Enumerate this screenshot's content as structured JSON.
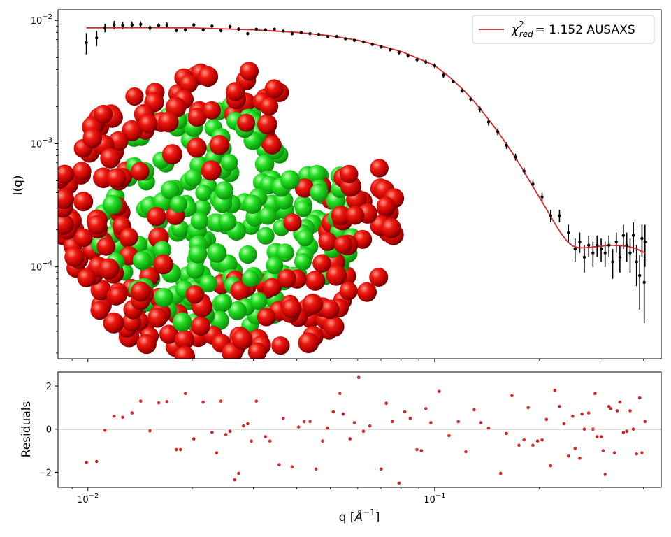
{
  "colors": {
    "data": "#000000",
    "fit": "#d62728",
    "residual": "#d62728",
    "zero_line": "#808080",
    "atom_shell": "#e00000",
    "atom_core": "#1ed81e"
  },
  "chart_data": [
    {
      "type": "scatter",
      "panel": "main",
      "ylabel": "I(q)",
      "xscale": "log",
      "yscale": "log",
      "xlim": [
        0.0082,
        0.45
      ],
      "ylim": [
        1.8e-05,
        0.0122
      ],
      "legend": {
        "position": "top-right",
        "text": "= 1.152 AUSAXS",
        "symbol_base": "χ",
        "symbol_sup": "2",
        "symbol_sub": "red"
      },
      "y_ticks": [
        {
          "value": 0.0001,
          "base": "10",
          "exp": "−4"
        },
        {
          "value": 0.001,
          "base": "10",
          "exp": "−3"
        },
        {
          "value": 0.01,
          "base": "10",
          "exp": "−2"
        }
      ],
      "series": [
        {
          "kind": "points-with-error",
          "points": [
            [
              0.0099,
              0.0066,
              0.0013
            ],
            [
              0.0106,
              0.0072,
              0.001
            ],
            [
              0.0112,
              0.0087,
              0.0007
            ],
            [
              0.0119,
              0.0092,
              0.0007
            ],
            [
              0.0126,
              0.0091,
              0.0006
            ],
            [
              0.0134,
              0.0092,
              0.0006
            ],
            [
              0.0142,
              0.0093,
              0.0005
            ],
            [
              0.0151,
              0.0087,
              0.0004
            ],
            [
              0.016,
              0.0091,
              0.0004
            ],
            [
              0.0169,
              0.0092,
              0.0004
            ],
            [
              0.018,
              0.0083,
              0.0003
            ],
            [
              0.0191,
              0.0084,
              0.0003
            ],
            [
              0.0202,
              0.0092,
              0.0003
            ],
            [
              0.0215,
              0.0084,
              0.0003
            ],
            [
              0.0228,
              0.009,
              0.0003
            ],
            [
              0.0242,
              0.0083,
              0.0003
            ],
            [
              0.0257,
              0.0089,
              0.0003
            ],
            [
              0.0272,
              0.0085,
              0.0003
            ],
            [
              0.0289,
              0.0078,
              0.0002
            ],
            [
              0.0306,
              0.0085,
              0.0002
            ],
            [
              0.0325,
              0.0084,
              0.0002
            ],
            [
              0.0345,
              0.0085,
              0.0002
            ],
            [
              0.0366,
              0.0082,
              0.0002
            ],
            [
              0.0388,
              0.0078,
              0.0002
            ],
            [
              0.0412,
              0.008,
              0.0002
            ],
            [
              0.0437,
              0.0078,
              0.0002
            ],
            [
              0.0463,
              0.0077,
              0.0002
            ],
            [
              0.0492,
              0.0074,
              0.0002
            ],
            [
              0.0522,
              0.0074,
              0.0002
            ],
            [
              0.0553,
              0.0071,
              0.0002
            ],
            [
              0.0587,
              0.0069,
              0.0002
            ],
            [
              0.0623,
              0.0067,
              0.0002
            ],
            [
              0.0661,
              0.0064,
              0.0002
            ],
            [
              0.0701,
              0.0061,
              0.0002
            ],
            [
              0.0744,
              0.0058,
              0.0002
            ],
            [
              0.0789,
              0.0055,
              0.0002
            ],
            [
              0.0838,
              0.0052,
              0.0002
            ],
            [
              0.0889,
              0.0048,
              0.0002
            ],
            [
              0.0943,
              0.0046,
              0.0002
            ],
            [
              0.1,
              0.0043,
              0.0002
            ],
            [
              0.106,
              0.0036,
              0.0002
            ],
            [
              0.113,
              0.0032,
              0.0001
            ],
            [
              0.12,
              0.0027,
              0.0001
            ],
            [
              0.127,
              0.0023,
              0.0001
            ],
            [
              0.135,
              0.0019,
              0.0001
            ],
            [
              0.143,
              0.0015,
              0.0001
            ],
            [
              0.152,
              0.00125,
              8e-05
            ],
            [
              0.161,
              0.00097,
              6e-05
            ],
            [
              0.171,
              0.00078,
              5e-05
            ],
            [
              0.181,
              0.0006,
              4e-05
            ],
            [
              0.192,
              0.00047,
              3e-05
            ],
            [
              0.204,
              0.00037,
              3e-05
            ],
            [
              0.216,
              0.00026,
              3e-05
            ],
            [
              0.229,
              0.00026,
              3e-05
            ],
            [
              0.243,
              0.00019,
              3e-05
            ],
            [
              0.254,
              0.00014,
              3e-05
            ],
            [
              0.262,
              0.00016,
              3e-05
            ],
            [
              0.27,
              0.00012,
              3e-05
            ],
            [
              0.278,
              0.00015,
              3e-05
            ],
            [
              0.286,
              0.00013,
              3e-05
            ],
            [
              0.294,
              0.00015,
              3e-05
            ],
            [
              0.302,
              0.00014,
              3e-05
            ],
            [
              0.31,
              0.00013,
              3e-05
            ],
            [
              0.318,
              0.00015,
              3e-05
            ],
            [
              0.326,
              0.00011,
              3e-05
            ],
            [
              0.334,
              0.00016,
              3e-05
            ],
            [
              0.342,
              0.00012,
              3e-05
            ],
            [
              0.35,
              0.00018,
              4e-05
            ],
            [
              0.358,
              0.00015,
              4e-05
            ],
            [
              0.366,
              0.00013,
              4e-05
            ],
            [
              0.374,
              0.00018,
              5e-05
            ],
            [
              0.382,
              0.00011,
              4e-05
            ],
            [
              0.39,
              8.5e-05,
              4e-05
            ],
            [
              0.396,
              0.00017,
              5e-05
            ],
            [
              0.402,
              7.5e-05,
              4e-05
            ],
            [
              0.404,
              0.00016,
              6e-05
            ]
          ]
        },
        {
          "kind": "fit-line",
          "points": [
            [
              0.0099,
              0.0087
            ],
            [
              0.015,
              0.00873
            ],
            [
              0.02,
              0.0087
            ],
            [
              0.03,
              0.0084
            ],
            [
              0.04,
              0.008
            ],
            [
              0.05,
              0.0075
            ],
            [
              0.06,
              0.0069
            ],
            [
              0.07,
              0.0062
            ],
            [
              0.08,
              0.0056
            ],
            [
              0.09,
              0.0049
            ],
            [
              0.1,
              0.0043
            ],
            [
              0.11,
              0.0035
            ],
            [
              0.12,
              0.0028
            ],
            [
              0.13,
              0.0022
            ],
            [
              0.14,
              0.0017
            ],
            [
              0.15,
              0.00132
            ],
            [
              0.16,
              0.00102
            ],
            [
              0.17,
              0.00079
            ],
            [
              0.18,
              0.00061
            ],
            [
              0.19,
              0.00047
            ],
            [
              0.2,
              0.00037
            ],
            [
              0.21,
              0.000295
            ],
            [
              0.22,
              0.000235
            ],
            [
              0.23,
              0.000192
            ],
            [
              0.24,
              0.000163
            ],
            [
              0.25,
              0.000148
            ],
            [
              0.26,
              0.000143
            ],
            [
              0.27,
              0.000143
            ],
            [
              0.28,
              0.000144
            ],
            [
              0.3,
              0.000147
            ],
            [
              0.32,
              0.00015
            ],
            [
              0.34,
              0.000149
            ],
            [
              0.36,
              0.000147
            ],
            [
              0.38,
              0.000141
            ],
            [
              0.4,
              0.000132
            ],
            [
              0.405,
              0.00013
            ]
          ]
        }
      ]
    },
    {
      "type": "scatter",
      "panel": "residuals",
      "xlabel_base": "q [",
      "xlabel_unit": "Å",
      "xlabel_exp": "−1",
      "xlabel_end": "]",
      "ylabel": "Residuals",
      "xscale": "log",
      "xlim": [
        0.0082,
        0.45
      ],
      "ylim": [
        -2.7,
        2.65
      ],
      "x_ticks": [
        {
          "value": 0.01,
          "base": "10",
          "exp": "−2"
        },
        {
          "value": 0.1,
          "base": "10",
          "exp": "−1"
        }
      ],
      "y_ticks": [
        {
          "value": -2,
          "label": "−2"
        },
        {
          "value": 0,
          "label": "0"
        },
        {
          "value": 2,
          "label": "2"
        }
      ],
      "points": [
        [
          0.0099,
          -1.55
        ],
        [
          0.0106,
          -1.5
        ],
        [
          0.0112,
          -0.05
        ],
        [
          0.0119,
          0.6
        ],
        [
          0.0126,
          0.55
        ],
        [
          0.0134,
          0.75
        ],
        [
          0.0142,
          1.3
        ],
        [
          0.0151,
          -0.08
        ],
        [
          0.016,
          1.22
        ],
        [
          0.0169,
          1.28
        ],
        [
          0.018,
          -0.95
        ],
        [
          0.0185,
          -0.95
        ],
        [
          0.0191,
          1.65
        ],
        [
          0.0202,
          -0.45
        ],
        [
          0.0215,
          1.25
        ],
        [
          0.0228,
          -0.15
        ],
        [
          0.0235,
          -1.1
        ],
        [
          0.0242,
          1.3
        ],
        [
          0.025,
          -0.25
        ],
        [
          0.0257,
          -0.1
        ],
        [
          0.0265,
          -2.35
        ],
        [
          0.0272,
          -2.05
        ],
        [
          0.0281,
          0.15
        ],
        [
          0.0289,
          0.25
        ],
        [
          0.0296,
          -0.55
        ],
        [
          0.0306,
          1.3
        ],
        [
          0.0325,
          -0.35
        ],
        [
          0.0335,
          -0.55
        ],
        [
          0.0356,
          -1.65
        ],
        [
          0.0366,
          0.5
        ],
        [
          0.0388,
          -1.75
        ],
        [
          0.0405,
          0.1
        ],
        [
          0.042,
          0.35
        ],
        [
          0.0437,
          0.35
        ],
        [
          0.0455,
          -1.85
        ],
        [
          0.0475,
          -0.55
        ],
        [
          0.049,
          0.05
        ],
        [
          0.051,
          0.8
        ],
        [
          0.0533,
          1.65
        ],
        [
          0.0545,
          0.7
        ],
        [
          0.057,
          -0.45
        ],
        [
          0.0587,
          0.3
        ],
        [
          0.0604,
          2.4
        ],
        [
          0.0623,
          -0.1
        ],
        [
          0.065,
          0.15
        ],
        [
          0.0701,
          -1.85
        ],
        [
          0.0725,
          1.2
        ],
        [
          0.0755,
          0.35
        ],
        [
          0.0789,
          -2.5
        ],
        [
          0.082,
          0.8
        ],
        [
          0.085,
          0.5
        ],
        [
          0.0889,
          -0.95
        ],
        [
          0.0915,
          -1.0
        ],
        [
          0.0943,
          0.95
        ],
        [
          0.0975,
          0.3
        ],
        [
          0.103,
          1.75
        ],
        [
          0.11,
          -0.3
        ],
        [
          0.117,
          0.35
        ],
        [
          0.123,
          -1.05
        ],
        [
          0.13,
          0.9
        ],
        [
          0.136,
          0.3
        ],
        [
          0.143,
          0.05
        ],
        [
          0.155,
          -2.05
        ],
        [
          0.161,
          -0.2
        ],
        [
          0.167,
          1.55
        ],
        [
          0.175,
          -0.75
        ],
        [
          0.181,
          -0.5
        ],
        [
          0.186,
          1.0
        ],
        [
          0.192,
          -0.75
        ],
        [
          0.198,
          -0.55
        ],
        [
          0.204,
          -0.5
        ],
        [
          0.21,
          0.45
        ],
        [
          0.216,
          -1.7
        ],
        [
          0.222,
          1.8
        ],
        [
          0.229,
          1.05
        ],
        [
          0.236,
          0.25
        ],
        [
          0.243,
          -1.25
        ],
        [
          0.25,
          0.6
        ],
        [
          0.254,
          -0.9
        ],
        [
          0.262,
          -1.35
        ],
        [
          0.266,
          0.7
        ],
        [
          0.27,
          0.0
        ],
        [
          0.278,
          0.75
        ],
        [
          0.286,
          0.0
        ],
        [
          0.29,
          1.65
        ],
        [
          0.294,
          -0.35
        ],
        [
          0.302,
          -0.35
        ],
        [
          0.306,
          -1.0
        ],
        [
          0.31,
          -2.1
        ],
        [
          0.318,
          1.05
        ],
        [
          0.322,
          0.95
        ],
        [
          0.33,
          -1.1
        ],
        [
          0.336,
          0.85
        ],
        [
          0.342,
          1.25
        ],
        [
          0.35,
          -0.15
        ],
        [
          0.358,
          -0.1
        ],
        [
          0.366,
          0.85
        ],
        [
          0.374,
          0.0
        ],
        [
          0.382,
          -1.15
        ],
        [
          0.39,
          1.45
        ],
        [
          0.396,
          -1.1
        ],
        [
          0.404,
          0.35
        ]
      ]
    }
  ]
}
